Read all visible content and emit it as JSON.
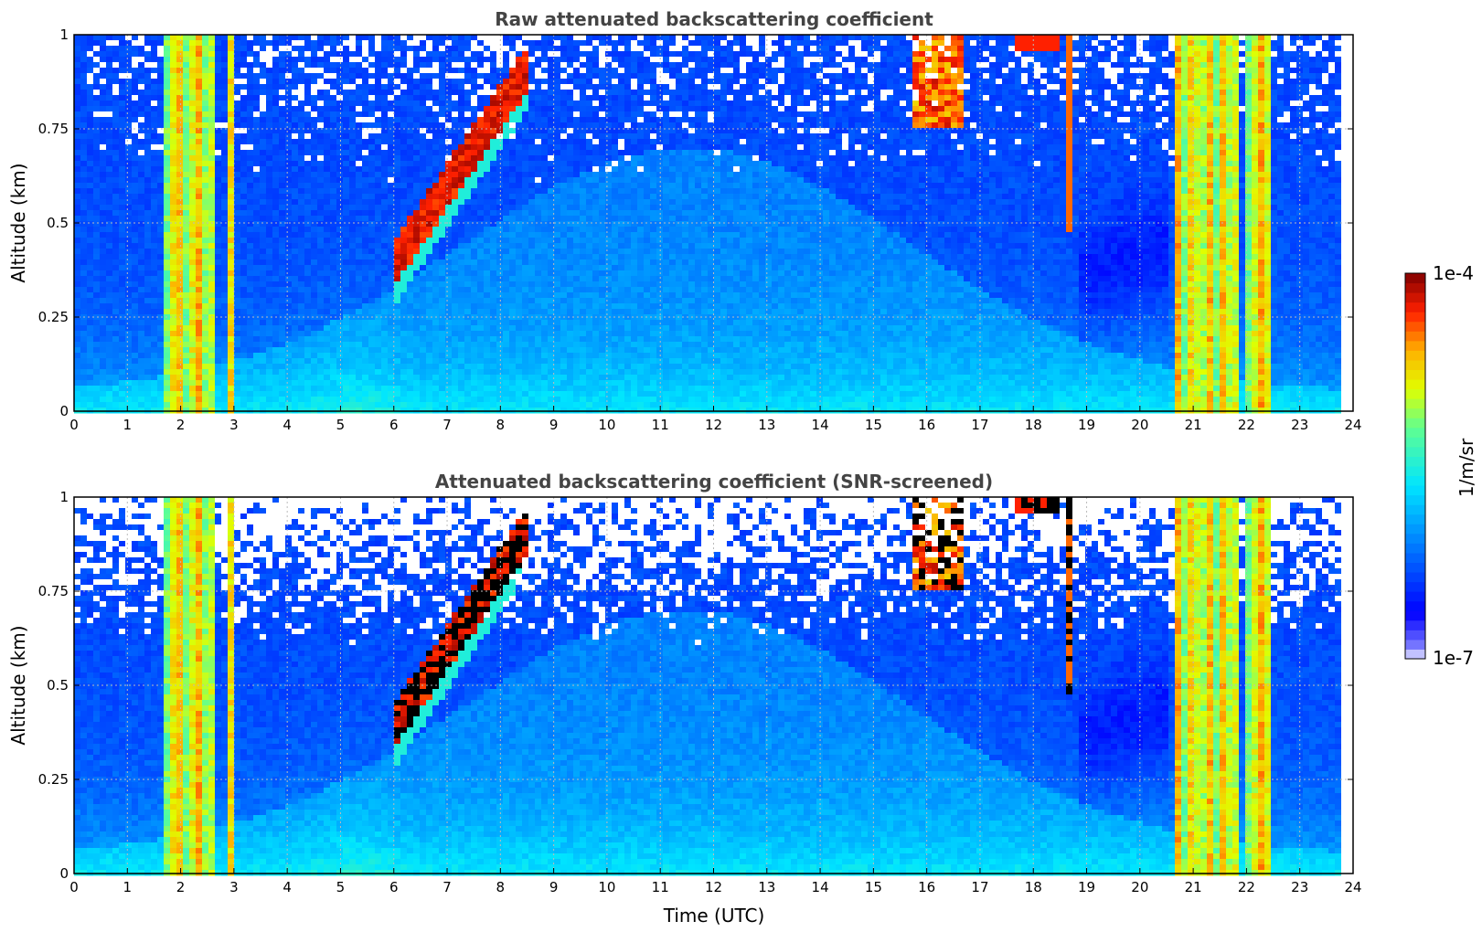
{
  "chart_data": [
    {
      "type": "heatmap",
      "title": "Raw attenuated backscattering coefficient",
      "xlabel": "",
      "ylabel": "Altitude (km)",
      "xlim": [
        0,
        24
      ],
      "ylim": [
        0,
        1
      ],
      "x_ticks": [
        "0",
        "1",
        "2",
        "3",
        "4",
        "5",
        "6",
        "7",
        "8",
        "9",
        "10",
        "11",
        "12",
        "13",
        "14",
        "15",
        "16",
        "17",
        "18",
        "19",
        "20",
        "21",
        "22",
        "23",
        "24"
      ],
      "y_ticks": [
        "0",
        "0.25",
        "0.5",
        "0.75",
        "1"
      ],
      "grid": true,
      "screened": false
    },
    {
      "type": "heatmap",
      "title": "Attenuated backscattering coefficient (SNR-screened)",
      "xlabel": "Time (UTC)",
      "ylabel": "Altitude (km)",
      "xlim": [
        0,
        24
      ],
      "ylim": [
        0,
        1
      ],
      "x_ticks": [
        "0",
        "1",
        "2",
        "3",
        "4",
        "5",
        "6",
        "7",
        "8",
        "9",
        "10",
        "11",
        "12",
        "13",
        "14",
        "15",
        "16",
        "17",
        "18",
        "19",
        "20",
        "21",
        "22",
        "23",
        "24"
      ],
      "y_ticks": [
        "0",
        "0.25",
        "0.5",
        "0.75",
        "1"
      ],
      "grid": true,
      "screened": true
    }
  ],
  "colorbar": {
    "label": "1/m/sr",
    "max_label": "1e-4",
    "min_label": "1e-7",
    "colormap": "jet"
  },
  "features": {
    "low_cloud_bands_hours": [
      [
        1.7,
        2.7
      ],
      [
        2.85,
        2.95
      ],
      [
        20.7,
        21.9
      ],
      [
        22.0,
        22.5
      ]
    ],
    "rising_cloud_layer": {
      "start_hour": 6.0,
      "end_hour": 8.5,
      "start_alt_km": 0.33,
      "end_alt_km": 0.85
    },
    "data_end_hour": 23.8
  }
}
